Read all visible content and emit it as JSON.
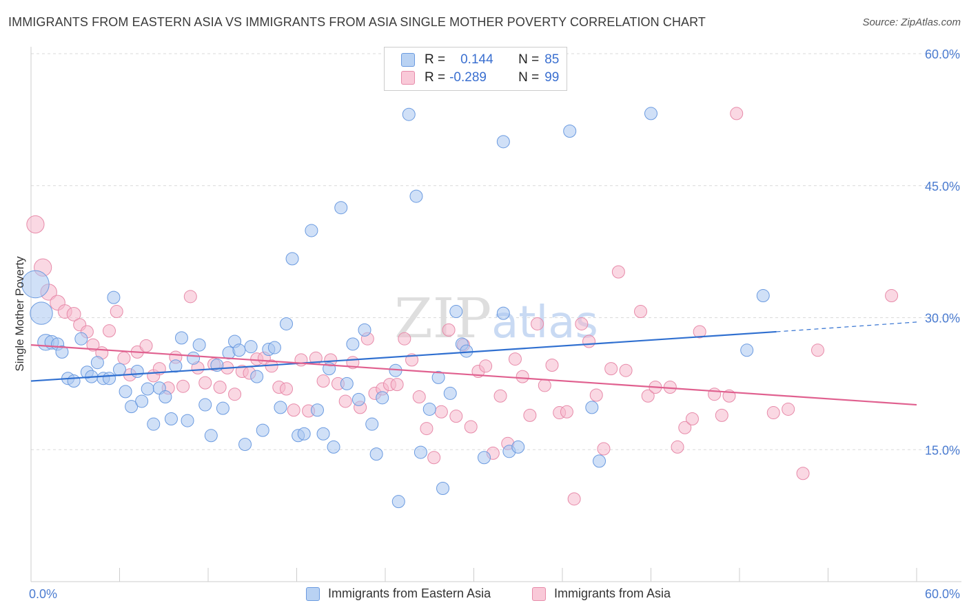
{
  "title": "IMMIGRANTS FROM EASTERN ASIA VS IMMIGRANTS FROM ASIA SINGLE MOTHER POVERTY CORRELATION CHART",
  "source": "Source: ZipAtlas.com",
  "watermark": "ZIPatlas",
  "legend": {
    "r_label": "R =",
    "n_label": "N =",
    "series1_r": "0.144",
    "series1_n": "85",
    "series2_r": "-0.289",
    "series2_n": "99"
  },
  "colors": {
    "blue_fill": "#a9c7f0",
    "blue_stroke": "#6a9ae0",
    "blue_line": "#2f6fd0",
    "pink_fill": "#f6b8cc",
    "pink_stroke": "#e78aa9",
    "pink_line": "#e0608f",
    "tick_text": "#4a7bd0"
  },
  "chart_data": {
    "type": "scatter",
    "title": "IMMIGRANTS FROM EASTERN ASIA VS IMMIGRANTS FROM ASIA SINGLE MOTHER POVERTY CORRELATION CHART",
    "xlabel": "",
    "ylabel": "Single Mother Poverty",
    "xlim": [
      0,
      60
    ],
    "ylim": [
      0,
      60
    ],
    "x_tick_labels": [
      "0.0%",
      "60.0%"
    ],
    "y_ticks": [
      15,
      30,
      45,
      60
    ],
    "y_tick_labels": [
      "15.0%",
      "30.0%",
      "45.0%",
      "60.0%"
    ],
    "grid": true,
    "legend_position": "top-center",
    "series": [
      {
        "name": "Immigrants from Eastern Asia",
        "r": 0.144,
        "n": 85,
        "trend": {
          "x0": 0,
          "y0": 22.8,
          "x1": 50.5,
          "y1": 28.4,
          "dash_to_x": 60,
          "dash_to_y": 29.5
        },
        "points": [
          [
            0.3,
            33.8,
            2.2
          ],
          [
            0.7,
            30.5,
            1.8
          ],
          [
            1.0,
            27.2,
            1.3
          ],
          [
            1.4,
            27.2,
            1.1
          ],
          [
            1.8,
            27.0,
            1.0
          ],
          [
            2.1,
            26.1,
            1.0
          ],
          [
            2.5,
            23.1,
            1.0
          ],
          [
            2.9,
            22.8,
            1.0
          ],
          [
            3.4,
            27.6,
            1.0
          ],
          [
            3.8,
            23.8,
            1.0
          ],
          [
            4.1,
            23.3,
            1.0
          ],
          [
            4.5,
            24.9,
            1.0
          ],
          [
            4.9,
            23.1,
            1.0
          ],
          [
            5.3,
            23.1,
            1.0
          ],
          [
            5.6,
            32.3,
            1.0
          ],
          [
            6.0,
            24.1,
            1.0
          ],
          [
            6.4,
            21.6,
            1.0
          ],
          [
            6.8,
            19.9,
            1.0
          ],
          [
            7.2,
            23.9,
            1.0
          ],
          [
            7.5,
            20.5,
            1.0
          ],
          [
            7.9,
            21.9,
            1.0
          ],
          [
            8.3,
            17.9,
            1.0
          ],
          [
            8.7,
            22.0,
            1.0
          ],
          [
            9.1,
            21.0,
            1.0
          ],
          [
            9.5,
            18.5,
            1.0
          ],
          [
            9.8,
            24.5,
            1.0
          ],
          [
            10.2,
            27.7,
            1.0
          ],
          [
            10.6,
            18.3,
            1.0
          ],
          [
            11.0,
            25.4,
            1.0
          ],
          [
            11.4,
            26.9,
            1.0
          ],
          [
            11.8,
            20.1,
            1.0
          ],
          [
            12.2,
            16.6,
            1.0
          ],
          [
            12.6,
            24.6,
            1.0
          ],
          [
            13.0,
            19.7,
            1.0
          ],
          [
            13.4,
            26.0,
            1.0
          ],
          [
            13.8,
            27.3,
            1.0
          ],
          [
            14.1,
            26.3,
            1.0
          ],
          [
            14.5,
            15.6,
            1.0
          ],
          [
            14.9,
            26.7,
            1.0
          ],
          [
            15.3,
            23.3,
            1.0
          ],
          [
            15.7,
            17.2,
            1.0
          ],
          [
            16.1,
            26.4,
            1.0
          ],
          [
            16.5,
            26.6,
            1.0
          ],
          [
            16.9,
            19.8,
            1.0
          ],
          [
            17.3,
            29.3,
            1.0
          ],
          [
            17.7,
            36.7,
            1.0
          ],
          [
            18.1,
            16.6,
            1.0
          ],
          [
            18.5,
            16.8,
            1.0
          ],
          [
            19.0,
            39.9,
            1.0
          ],
          [
            19.4,
            19.5,
            1.0
          ],
          [
            19.8,
            16.8,
            1.0
          ],
          [
            20.2,
            24.2,
            1.0
          ],
          [
            20.5,
            15.3,
            1.0
          ],
          [
            21.0,
            42.5,
            1.0
          ],
          [
            21.4,
            22.5,
            1.0
          ],
          [
            21.8,
            27.0,
            1.0
          ],
          [
            22.2,
            20.7,
            1.0
          ],
          [
            22.6,
            28.6,
            1.0
          ],
          [
            23.1,
            17.9,
            1.0
          ],
          [
            23.4,
            14.5,
            1.0
          ],
          [
            23.8,
            20.9,
            1.0
          ],
          [
            24.7,
            24.0,
            1.0
          ],
          [
            24.9,
            9.1,
            1.0
          ],
          [
            25.6,
            53.1,
            1.0
          ],
          [
            26.1,
            43.8,
            1.0
          ],
          [
            26.4,
            14.7,
            1.0
          ],
          [
            27.0,
            19.6,
            1.0
          ],
          [
            27.6,
            23.2,
            1.0
          ],
          [
            27.9,
            10.6,
            1.0
          ],
          [
            28.4,
            21.4,
            1.0
          ],
          [
            28.8,
            30.7,
            1.0
          ],
          [
            29.2,
            27.0,
            1.0
          ],
          [
            29.5,
            26.2,
            1.0
          ],
          [
            30.7,
            14.1,
            1.0
          ],
          [
            32.0,
            50.0,
            1.0
          ],
          [
            32.0,
            30.5,
            1.0
          ],
          [
            32.4,
            14.8,
            1.0
          ],
          [
            33.0,
            15.3,
            1.0
          ],
          [
            36.5,
            51.2,
            1.0
          ],
          [
            38.0,
            19.8,
            1.0
          ],
          [
            38.5,
            13.7,
            1.0
          ],
          [
            42.0,
            53.2,
            1.0
          ],
          [
            48.5,
            26.3,
            1.0
          ],
          [
            49.6,
            32.5,
            1.0
          ]
        ]
      },
      {
        "name": "Immigrants from Asia",
        "r": -0.289,
        "n": 99,
        "trend": {
          "x0": 0,
          "y0": 26.9,
          "x1": 60,
          "y1": 20.1
        },
        "points": [
          [
            0.3,
            40.6,
            1.4
          ],
          [
            0.8,
            35.7,
            1.4
          ],
          [
            1.2,
            32.9,
            1.3
          ],
          [
            1.8,
            31.7,
            1.2
          ],
          [
            2.3,
            30.7,
            1.1
          ],
          [
            2.9,
            30.4,
            1.1
          ],
          [
            3.3,
            29.2,
            1.0
          ],
          [
            3.8,
            28.4,
            1.0
          ],
          [
            4.2,
            26.9,
            1.0
          ],
          [
            4.8,
            26.0,
            1.0
          ],
          [
            5.3,
            28.5,
            1.0
          ],
          [
            5.8,
            30.7,
            1.0
          ],
          [
            6.3,
            25.4,
            1.0
          ],
          [
            6.7,
            23.5,
            1.0
          ],
          [
            7.2,
            26.1,
            1.0
          ],
          [
            7.8,
            26.8,
            1.0
          ],
          [
            8.3,
            23.4,
            1.0
          ],
          [
            8.7,
            24.2,
            1.0
          ],
          [
            9.3,
            22.0,
            1.0
          ],
          [
            9.8,
            25.5,
            1.0
          ],
          [
            10.3,
            22.2,
            1.0
          ],
          [
            10.8,
            32.4,
            1.0
          ],
          [
            11.3,
            24.3,
            1.0
          ],
          [
            11.8,
            22.6,
            1.0
          ],
          [
            12.4,
            24.7,
            1.0
          ],
          [
            12.8,
            22.1,
            1.0
          ],
          [
            13.3,
            24.3,
            1.0
          ],
          [
            13.8,
            21.3,
            1.0
          ],
          [
            14.3,
            23.9,
            1.0
          ],
          [
            14.8,
            23.7,
            1.0
          ],
          [
            15.3,
            25.3,
            1.0
          ],
          [
            15.8,
            25.4,
            1.0
          ],
          [
            16.3,
            24.5,
            1.0
          ],
          [
            16.8,
            22.1,
            1.0
          ],
          [
            17.3,
            21.9,
            1.0
          ],
          [
            17.8,
            19.5,
            1.0
          ],
          [
            18.3,
            25.2,
            1.0
          ],
          [
            18.8,
            19.4,
            1.0
          ],
          [
            19.3,
            25.4,
            1.0
          ],
          [
            19.8,
            22.8,
            1.0
          ],
          [
            20.3,
            25.2,
            1.0
          ],
          [
            20.8,
            22.5,
            1.0
          ],
          [
            21.3,
            20.5,
            1.0
          ],
          [
            21.8,
            24.9,
            1.0
          ],
          [
            22.3,
            19.8,
            1.0
          ],
          [
            22.8,
            27.6,
            1.0
          ],
          [
            23.3,
            21.4,
            1.0
          ],
          [
            23.8,
            21.9,
            1.0
          ],
          [
            24.3,
            22.4,
            1.0
          ],
          [
            24.8,
            22.4,
            1.0
          ],
          [
            25.3,
            27.6,
            1.0
          ],
          [
            25.8,
            25.2,
            1.0
          ],
          [
            26.3,
            21.0,
            1.0
          ],
          [
            26.8,
            17.4,
            1.0
          ],
          [
            27.3,
            14.1,
            1.0
          ],
          [
            27.8,
            19.3,
            1.0
          ],
          [
            28.3,
            28.6,
            1.0
          ],
          [
            28.8,
            18.8,
            1.0
          ],
          [
            29.3,
            26.9,
            1.0
          ],
          [
            29.8,
            17.6,
            1.0
          ],
          [
            30.3,
            23.9,
            1.0
          ],
          [
            30.8,
            24.5,
            1.0
          ],
          [
            31.3,
            14.6,
            1.0
          ],
          [
            31.8,
            21.1,
            1.0
          ],
          [
            32.3,
            15.7,
            1.0
          ],
          [
            32.8,
            25.3,
            1.0
          ],
          [
            33.3,
            23.3,
            1.0
          ],
          [
            33.8,
            18.9,
            1.0
          ],
          [
            34.3,
            29.3,
            1.0
          ],
          [
            34.8,
            22.3,
            1.0
          ],
          [
            35.3,
            24.6,
            1.0
          ],
          [
            35.8,
            19.2,
            1.0
          ],
          [
            36.3,
            19.3,
            1.0
          ],
          [
            36.8,
            9.4,
            1.0
          ],
          [
            37.3,
            29.3,
            1.0
          ],
          [
            37.8,
            27.3,
            1.0
          ],
          [
            38.3,
            21.2,
            1.0
          ],
          [
            38.8,
            15.1,
            1.0
          ],
          [
            39.3,
            24.2,
            1.0
          ],
          [
            39.8,
            35.2,
            1.0
          ],
          [
            40.3,
            24.0,
            1.0
          ],
          [
            41.3,
            30.7,
            1.0
          ],
          [
            41.8,
            21.1,
            1.0
          ],
          [
            42.3,
            22.1,
            1.0
          ],
          [
            43.3,
            22.1,
            1.0
          ],
          [
            43.8,
            15.3,
            1.0
          ],
          [
            44.3,
            17.5,
            1.0
          ],
          [
            44.8,
            18.5,
            1.0
          ],
          [
            45.3,
            28.4,
            1.0
          ],
          [
            46.3,
            21.3,
            1.0
          ],
          [
            46.8,
            18.9,
            1.0
          ],
          [
            47.3,
            21.1,
            1.0
          ],
          [
            47.8,
            53.2,
            1.0
          ],
          [
            50.3,
            19.2,
            1.0
          ],
          [
            51.3,
            19.6,
            1.0
          ],
          [
            52.3,
            12.3,
            1.0
          ],
          [
            53.3,
            26.3,
            1.0
          ],
          [
            58.3,
            32.5,
            1.0
          ]
        ]
      }
    ]
  },
  "bottom_legend": {
    "series1": "Immigrants from Eastern Asia",
    "series2": "Immigrants from Asia"
  }
}
